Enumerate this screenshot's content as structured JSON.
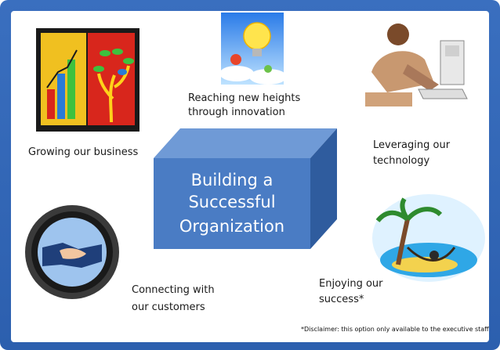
{
  "center": {
    "line1": "Building a",
    "line2": "Successful",
    "line3": "Organization"
  },
  "items": [
    {
      "label": "Growing our business",
      "icon": "bar-chart-tree-artwork"
    },
    {
      "label_line1": "Reaching new heights",
      "label_line2": "through innovation",
      "icon": "lightbulb-balloons-icon"
    },
    {
      "label_line1": "Leveraging our",
      "label_line2": "technology",
      "icon": "person-at-computer-icon"
    },
    {
      "label_line1": "Connecting with",
      "label_line2": "our customers",
      "icon": "handshake-icon"
    },
    {
      "label_line1": "Enjoying our",
      "label_line2": "success*",
      "icon": "island-hammock-icon"
    }
  ],
  "disclaimer": "*Disclaimer:  this option only available to the executive staff",
  "colors": {
    "frame_blue": "#2f63b3",
    "cube_front": "#4a7cc4",
    "cube_top": "#6f9ad6",
    "cube_side": "#2f5c9e"
  }
}
